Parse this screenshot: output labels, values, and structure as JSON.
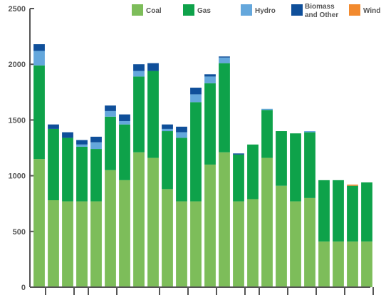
{
  "chart_data": {
    "type": "bar",
    "stacked": true,
    "title": "",
    "xlabel": "",
    "ylabel": "",
    "ylim": [
      0,
      2500
    ],
    "yticks": [
      0,
      500,
      1000,
      1500,
      2000,
      2500
    ],
    "grid": false,
    "legend_position": "top",
    "bar_count": 24,
    "series": [
      {
        "name": "Coal",
        "color": "#7dbd5a",
        "values": [
          1150,
          780,
          770,
          770,
          770,
          1050,
          960,
          1210,
          1160,
          880,
          770,
          770,
          1100,
          1210,
          770,
          790,
          1160,
          910,
          770,
          800,
          410,
          410,
          410,
          410
        ]
      },
      {
        "name": "Gas",
        "color": "#0ea24a",
        "values": [
          840,
          640,
          570,
          490,
          470,
          480,
          500,
          680,
          780,
          520,
          570,
          890,
          730,
          800,
          420,
          490,
          430,
          490,
          610,
          590,
          550,
          550,
          500,
          530
        ]
      },
      {
        "name": "Hydro",
        "color": "#64a7dc",
        "values": [
          130,
          0,
          0,
          20,
          60,
          50,
          30,
          50,
          0,
          20,
          50,
          70,
          60,
          50,
          0,
          0,
          10,
          0,
          0,
          10,
          0,
          0,
          0,
          0
        ]
      },
      {
        "name": "Biomass and Other",
        "color": "#0f4f9a",
        "values": [
          60,
          40,
          50,
          40,
          50,
          50,
          60,
          60,
          70,
          40,
          50,
          60,
          20,
          10,
          10,
          0,
          0,
          0,
          0,
          0,
          0,
          0,
          0,
          0
        ]
      },
      {
        "name": "Wind",
        "color": "#f28a2e",
        "values": [
          0,
          0,
          0,
          0,
          0,
          0,
          0,
          0,
          0,
          0,
          0,
          0,
          0,
          0,
          0,
          0,
          0,
          0,
          0,
          0,
          0,
          0,
          10,
          0
        ]
      }
    ]
  },
  "legend": [
    {
      "label": "Coal",
      "color": "#7dbd5a"
    },
    {
      "label": "Gas",
      "color": "#0ea24a"
    },
    {
      "label": "Hydro",
      "color": "#64a7dc"
    },
    {
      "label_line1": "Biomass",
      "label_line2": "and Other",
      "color": "#0f4f9a"
    },
    {
      "label": "Wind",
      "color": "#f28a2e"
    }
  ]
}
